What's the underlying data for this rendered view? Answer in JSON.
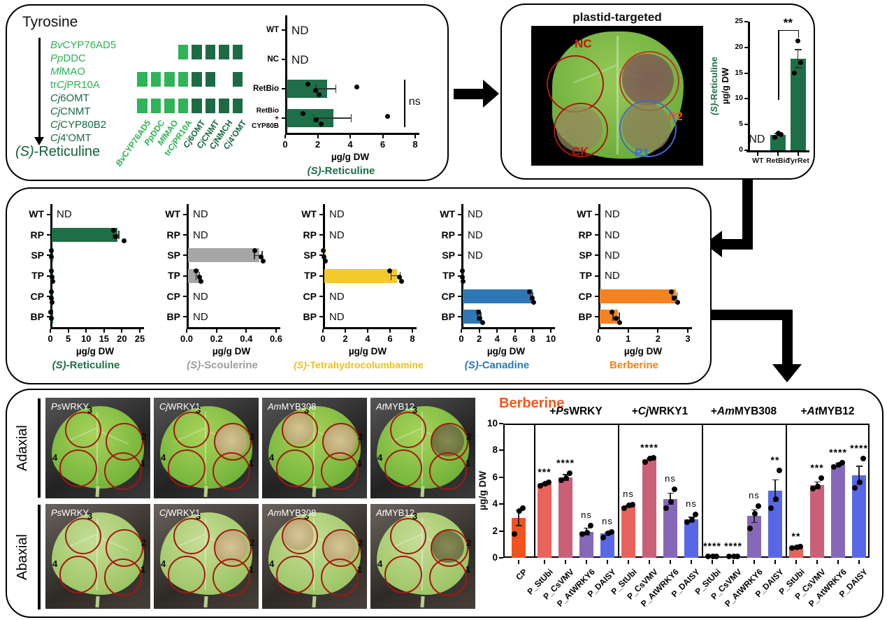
{
  "pathway": {
    "substrate": "Tyrosine",
    "product": {
      "it": "(S)",
      "rest": "-Reticuline"
    },
    "genes": [
      {
        "pre": "",
        "it": "Bv",
        "rest": "CYP76AD5",
        "shade": "light"
      },
      {
        "pre": "",
        "it": "Pp",
        "rest": "DDC",
        "shade": "light"
      },
      {
        "pre": "",
        "it": "Ml",
        "rest": "MAO",
        "shade": "light"
      },
      {
        "pre": "tr",
        "it": "Cj",
        "rest": "PR10A",
        "shade": "light"
      },
      {
        "pre": "",
        "it": "Cj",
        "rest": "6OMT",
        "shade": "dark"
      },
      {
        "pre": "",
        "it": "Cj",
        "rest": "CNMT",
        "shade": "dark"
      },
      {
        "pre": "",
        "it": "Cj",
        "rest": "CYP80B2",
        "shade": "dark"
      },
      {
        "pre": "",
        "it": "Cj",
        "rest": "4'OMT",
        "shade": "dark"
      }
    ],
    "heatmap": {
      "columns": [
        {
          "pre": "",
          "it": "Bv",
          "rest": "CYP76AD5",
          "shade": "light"
        },
        {
          "pre": "",
          "it": "Pp",
          "rest": "DDC",
          "shade": "light"
        },
        {
          "pre": "",
          "it": "Ml",
          "rest": "MAO",
          "shade": "light"
        },
        {
          "pre": "tr",
          "it": "Cj",
          "rest": "PR10A",
          "shade": "light"
        },
        {
          "pre": "",
          "it": "Cj",
          "rest": "6OMT",
          "shade": "dark"
        },
        {
          "pre": "",
          "it": "Cj",
          "rest": "CNMT",
          "shade": "dark"
        },
        {
          "pre": "",
          "it": "Cj",
          "rest": "NMCH",
          "shade": "dark"
        },
        {
          "pre": "",
          "it": "Cj",
          "rest": "4'OMT",
          "shade": "dark"
        }
      ],
      "rows": [
        {
          "label": "NC",
          "cells": [
            0,
            0,
            0,
            1,
            2,
            2,
            2,
            2
          ]
        },
        {
          "label": "RetBio",
          "cells": [
            1,
            1,
            1,
            1,
            2,
            2,
            0,
            2
          ]
        },
        {
          "label": "RetBio + CYP80B",
          "cells": [
            1,
            1,
            1,
            1,
            2,
            2,
            2,
            2
          ]
        }
      ]
    }
  },
  "plastid_panel": {
    "title": "plastid-targeted",
    "spots": [
      {
        "label": "NC",
        "label_color": "#C21807",
        "ring": "#AE1510",
        "fill": "none",
        "pos": "tl"
      },
      {
        "label": "P2",
        "label_color": "#F2592A",
        "ring": "#B8372B",
        "fill": "#7C4F55",
        "pos": "tr"
      },
      {
        "label": "CK",
        "label_color": "#C21807",
        "ring": "#AE1510",
        "fill": "#94885C",
        "pos": "bl"
      },
      {
        "label": "P1",
        "label_color": "#3D6FD6",
        "ring": "#4A66C8",
        "fill": "#8A7E58",
        "pos": "br"
      }
    ]
  },
  "tf_panel": {
    "row_labels": [
      "Adaxial",
      "Abaxial"
    ],
    "spot_numbers": {
      "c3": "3",
      "c2": "2",
      "c4": "4",
      "c1": "1"
    },
    "columns": [
      {
        "it": "Ps",
        "rest": "WRKY",
        "necrosis": []
      },
      {
        "it": "Cj",
        "rest": "WRKY1",
        "necrosis": [
          {
            "at": "c2",
            "tone": "tan"
          }
        ]
      },
      {
        "it": "Am",
        "rest": "MYB308",
        "necrosis": [
          {
            "at": "c3",
            "tone": "tan"
          },
          {
            "at": "c2",
            "tone": "tan"
          }
        ]
      },
      {
        "it": "At",
        "rest": "MYB12",
        "necrosis": [
          {
            "at": "c2",
            "tone": "dark"
          }
        ]
      }
    ]
  },
  "chart_data": [
    {
      "id": "agro-reticuline",
      "type": "hbar",
      "title": {
        "it": "(S)",
        "rest": "-Reticuline"
      },
      "title_color": "#1E6F47",
      "xlabel": "µg/g DW",
      "xlim": [
        0,
        8
      ],
      "xticks": [
        0,
        2,
        4,
        6,
        8
      ],
      "tick_decimals": 0,
      "bar_color": "#1E6F47",
      "nd_text": "ND",
      "categories": [
        "WT",
        "NC",
        "RetBio",
        "RetBio\n+\nCYP80B"
      ],
      "values": [
        null,
        null,
        2.5,
        2.9
      ],
      "errors": [
        null,
        null,
        0.65,
        1.2
      ],
      "dots": [
        [],
        [],
        [
          1.4,
          1.85,
          2.1,
          4.4
        ],
        [
          1.1,
          1.9,
          2.2,
          6.3
        ]
      ],
      "annotation": {
        "label": "ns",
        "x": 7.3,
        "from_cat": 2,
        "to_cat": 3
      }
    },
    {
      "id": "plastid-reticuline",
      "type": "vbar",
      "ylabel_line1": "(S)-Reticuline",
      "ylabel_line1_color": "#1E6F47",
      "ylabel_line2": "µg/g DW",
      "ylim": [
        0,
        25
      ],
      "yticks": [
        0,
        5,
        10,
        15,
        20,
        25
      ],
      "bar_color": "#1E6F47",
      "nd_text": "ND",
      "categories": [
        "WT",
        "RetBio",
        "TyrRet"
      ],
      "values": [
        null,
        3.0,
        17.8
      ],
      "errors": [
        null,
        0.35,
        1.85
      ],
      "dots": [
        [],
        [
          2.5,
          3.0,
          3.3
        ],
        [
          15.0,
          17.1,
          21.3
        ]
      ],
      "bracket": {
        "label": "**",
        "from_cat": 1,
        "to_cat": 2,
        "y_top": 23.4,
        "y_from": 9.8,
        "y_to": 21.9
      }
    },
    {
      "id": "stable-reticuline",
      "type": "hbar",
      "title": {
        "it": "(S)",
        "rest": "-Reticuline"
      },
      "title_color": "#1E6F47",
      "xlabel": "µg/g DW",
      "xlim": [
        0,
        25
      ],
      "xticks": [
        0,
        5,
        10,
        15,
        20,
        25
      ],
      "tick_decimals": 0,
      "bar_color": "#1E6F47",
      "nd_text": "ND",
      "categories": [
        "WT",
        "RP",
        "SP",
        "TP",
        "CP",
        "BP"
      ],
      "values": [
        null,
        18.3,
        0.25,
        0.4,
        0.25,
        0.2
      ],
      "errors": [
        null,
        1.0,
        null,
        null,
        null,
        null
      ],
      "dots": [
        [],
        [
          17.7,
          18.2,
          20.6
        ],
        [
          0.2,
          0.35
        ],
        [
          0.3,
          0.5,
          0.65
        ],
        [
          0.2,
          0.35,
          0.5
        ],
        [
          0.15,
          0.3
        ]
      ]
    },
    {
      "id": "stable-scoulerine",
      "type": "hbar",
      "title": {
        "it": "(S)",
        "rest": "-Scoulerine"
      },
      "title_color": "#9D9D9D",
      "xlabel": "µg/g DW",
      "xlim": [
        0,
        0.6
      ],
      "xticks": [
        0,
        0.2,
        0.4,
        0.6
      ],
      "tick_decimals": 1,
      "bar_color": "#A6A6A6",
      "nd_text": "ND",
      "categories": [
        "WT",
        "RP",
        "SP",
        "TP",
        "CP",
        "BP"
      ],
      "values": [
        null,
        null,
        0.48,
        0.075,
        null,
        null
      ],
      "errors": [
        null,
        null,
        0.03,
        0.015,
        null,
        null
      ],
      "dots": [
        [],
        [],
        [
          0.455,
          0.5,
          0.515
        ],
        [
          0.065,
          0.085,
          0.095
        ],
        [],
        []
      ]
    },
    {
      "id": "stable-tetrahydrocolumbamine",
      "type": "hbar",
      "title": {
        "it": "(S)",
        "rest": "-Tetrahydrocolumbamine"
      },
      "title_color": "#EFBF1A",
      "xlabel": "µg/g DW",
      "xlim": [
        0,
        8
      ],
      "xticks": [
        0,
        2,
        4,
        6,
        8
      ],
      "tick_decimals": 0,
      "bar_color": "#F3C92C",
      "nd_text": "ND",
      "categories": [
        "WT",
        "RP",
        "SP",
        "TP",
        "CP",
        "BP"
      ],
      "values": [
        null,
        null,
        0.1,
        6.5,
        null,
        null
      ],
      "errors": [
        null,
        null,
        null,
        0.45,
        null,
        null
      ],
      "dots": [
        [],
        [],
        [
          0.05,
          0.12,
          0.2
        ],
        [
          5.95,
          6.85,
          7.05
        ],
        [],
        []
      ]
    },
    {
      "id": "stable-canadine",
      "type": "hbar",
      "title": {
        "it": "(S)",
        "rest": "-Canadine"
      },
      "title_color": "#2E77B5",
      "xlabel": "µg/g DW",
      "xlim": [
        0,
        10
      ],
      "xticks": [
        0,
        2,
        4,
        6,
        8,
        10
      ],
      "tick_decimals": 0,
      "bar_color": "#2E77B5",
      "nd_text": "ND",
      "categories": [
        "WT",
        "RP",
        "SP",
        "TP",
        "CP",
        "BP"
      ],
      "values": [
        null,
        null,
        null,
        0.12,
        7.85,
        2.0
      ],
      "errors": [
        null,
        null,
        null,
        null,
        0.2,
        0.25
      ],
      "dots": [
        [],
        [],
        [],
        [
          0.08,
          0.15,
          0.22
        ],
        [
          7.65,
          7.9,
          8.1
        ],
        [
          1.9,
          2.1,
          2.35
        ]
      ]
    },
    {
      "id": "stable-berberine",
      "type": "hbar",
      "title": {
        "rest": "Berberine"
      },
      "title_color": "#F58220",
      "xlabel": "µg/g DW",
      "xlim": [
        0,
        3
      ],
      "xticks": [
        0,
        1,
        2,
        3
      ],
      "tick_decimals": 0,
      "bar_color": "#F58220",
      "nd_text": "ND",
      "categories": [
        "WT",
        "RP",
        "SP",
        "TP",
        "CP",
        "BP"
      ],
      "values": [
        null,
        null,
        null,
        null,
        2.55,
        0.6
      ],
      "errors": [
        null,
        null,
        null,
        null,
        0.1,
        0.12
      ],
      "dots": [
        [],
        [],
        [],
        [],
        [
          2.45,
          2.55,
          2.67
        ],
        [
          0.45,
          0.6,
          0.72
        ]
      ]
    },
    {
      "id": "tf-berberine",
      "type": "vbar-grouped",
      "title": "Berberine",
      "title_color": "#F2581C",
      "ylabel": "µg/g DW",
      "ylim": [
        0,
        10
      ],
      "yticks": [
        0,
        2,
        4,
        6,
        8,
        10
      ],
      "groups": [
        {
          "header": null,
          "bars": [
            {
              "label": "CP",
              "value": 2.95,
              "err": 0.6,
              "dots": [
                1.75,
                3.5,
                3.7
              ],
              "sig": null,
              "color": "#F4521C"
            }
          ]
        },
        {
          "header": {
            "pre": "+",
            "it": "Ps",
            "rest": "WRKY"
          },
          "bars": [
            {
              "label": "P_StUbi",
              "value": 5.5,
              "err": 0.12,
              "dots": [
                5.35,
                5.5,
                5.6
              ],
              "sig": "***",
              "color": "#E9625B"
            },
            {
              "label": "P_CsVMV",
              "value": 6.0,
              "err": 0.25,
              "dots": [
                5.8,
                5.95,
                6.3
              ],
              "sig": "****",
              "color": "#C96078"
            },
            {
              "label": "P_AtWRKY6",
              "value": 1.95,
              "err": 0.3,
              "dots": [
                1.75,
                1.9,
                2.4
              ],
              "sig": "ns",
              "color": "#8668B8"
            },
            {
              "label": "P_DAISY",
              "value": 1.8,
              "err": 0.15,
              "dots": [
                1.5,
                1.8,
                1.95
              ],
              "sig": "ns",
              "color": "#5767E8"
            }
          ]
        },
        {
          "header": {
            "pre": "+",
            "it": "Cj",
            "rest": "WRKY1"
          },
          "bars": [
            {
              "label": "P_StUbi",
              "value": 3.85,
              "err": 0.1,
              "dots": [
                3.7,
                3.9,
                3.95
              ],
              "sig": "ns",
              "color": "#E9625B"
            },
            {
              "label": "P_CsVMV",
              "value": 7.35,
              "err": 0.1,
              "dots": [
                7.15,
                7.4,
                7.45
              ],
              "sig": "****",
              "color": "#C96078"
            },
            {
              "label": "P_AtWRKY6",
              "value": 4.4,
              "err": 0.45,
              "dots": [
                3.7,
                4.15,
                5.1
              ],
              "sig": "ns",
              "color": "#8668B8"
            },
            {
              "label": "P_DAISY",
              "value": 2.85,
              "err": 0.2,
              "dots": [
                2.65,
                2.8,
                3.25
              ],
              "sig": "ns",
              "color": "#5767E8"
            }
          ]
        },
        {
          "header": {
            "pre": "+",
            "it": "Am",
            "rest": "MYB308"
          },
          "bars": [
            {
              "label": "P_StUbi",
              "value": 0.06,
              "err": null,
              "dots": [
                0.05,
                0.05,
                0.05
              ],
              "sig": "****",
              "color": "#E9625B"
            },
            {
              "label": "P_CsVMV",
              "value": 0.06,
              "err": null,
              "dots": [
                0.05,
                0.05,
                0.05
              ],
              "sig": "****",
              "color": "#C96078"
            },
            {
              "label": "P_AtWRKY6",
              "value": 3.1,
              "err": 0.5,
              "dots": [
                2.2,
                3.3,
                3.85
              ],
              "sig": "ns",
              "color": "#8668B8"
            },
            {
              "label": "P_DAISY",
              "value": 5.0,
              "err": 0.85,
              "dots": [
                3.7,
                4.4,
                6.5
              ],
              "sig": "**",
              "color": "#5767E8"
            }
          ]
        },
        {
          "header": {
            "pre": "+",
            "it": "At",
            "rest": "MYB12"
          },
          "bars": [
            {
              "label": "P_StUbi",
              "value": 0.8,
              "err": 0.06,
              "dots": [
                0.75,
                0.8,
                0.85
              ],
              "sig": "**",
              "color": "#E9625B"
            },
            {
              "label": "P_CsVMV",
              "value": 5.4,
              "err": 0.3,
              "dots": [
                5.15,
                5.3,
                5.95
              ],
              "sig": "***",
              "color": "#C96078"
            },
            {
              "label": "P_AtWRKY6",
              "value": 6.95,
              "err": 0.15,
              "dots": [
                6.75,
                6.95,
                7.1
              ],
              "sig": "****",
              "color": "#8668B8"
            },
            {
              "label": "P_DAISY",
              "value": 6.15,
              "err": 0.7,
              "dots": [
                5.2,
                5.6,
                7.4
              ],
              "sig": "****",
              "color": "#5767E8"
            }
          ]
        }
      ]
    }
  ]
}
